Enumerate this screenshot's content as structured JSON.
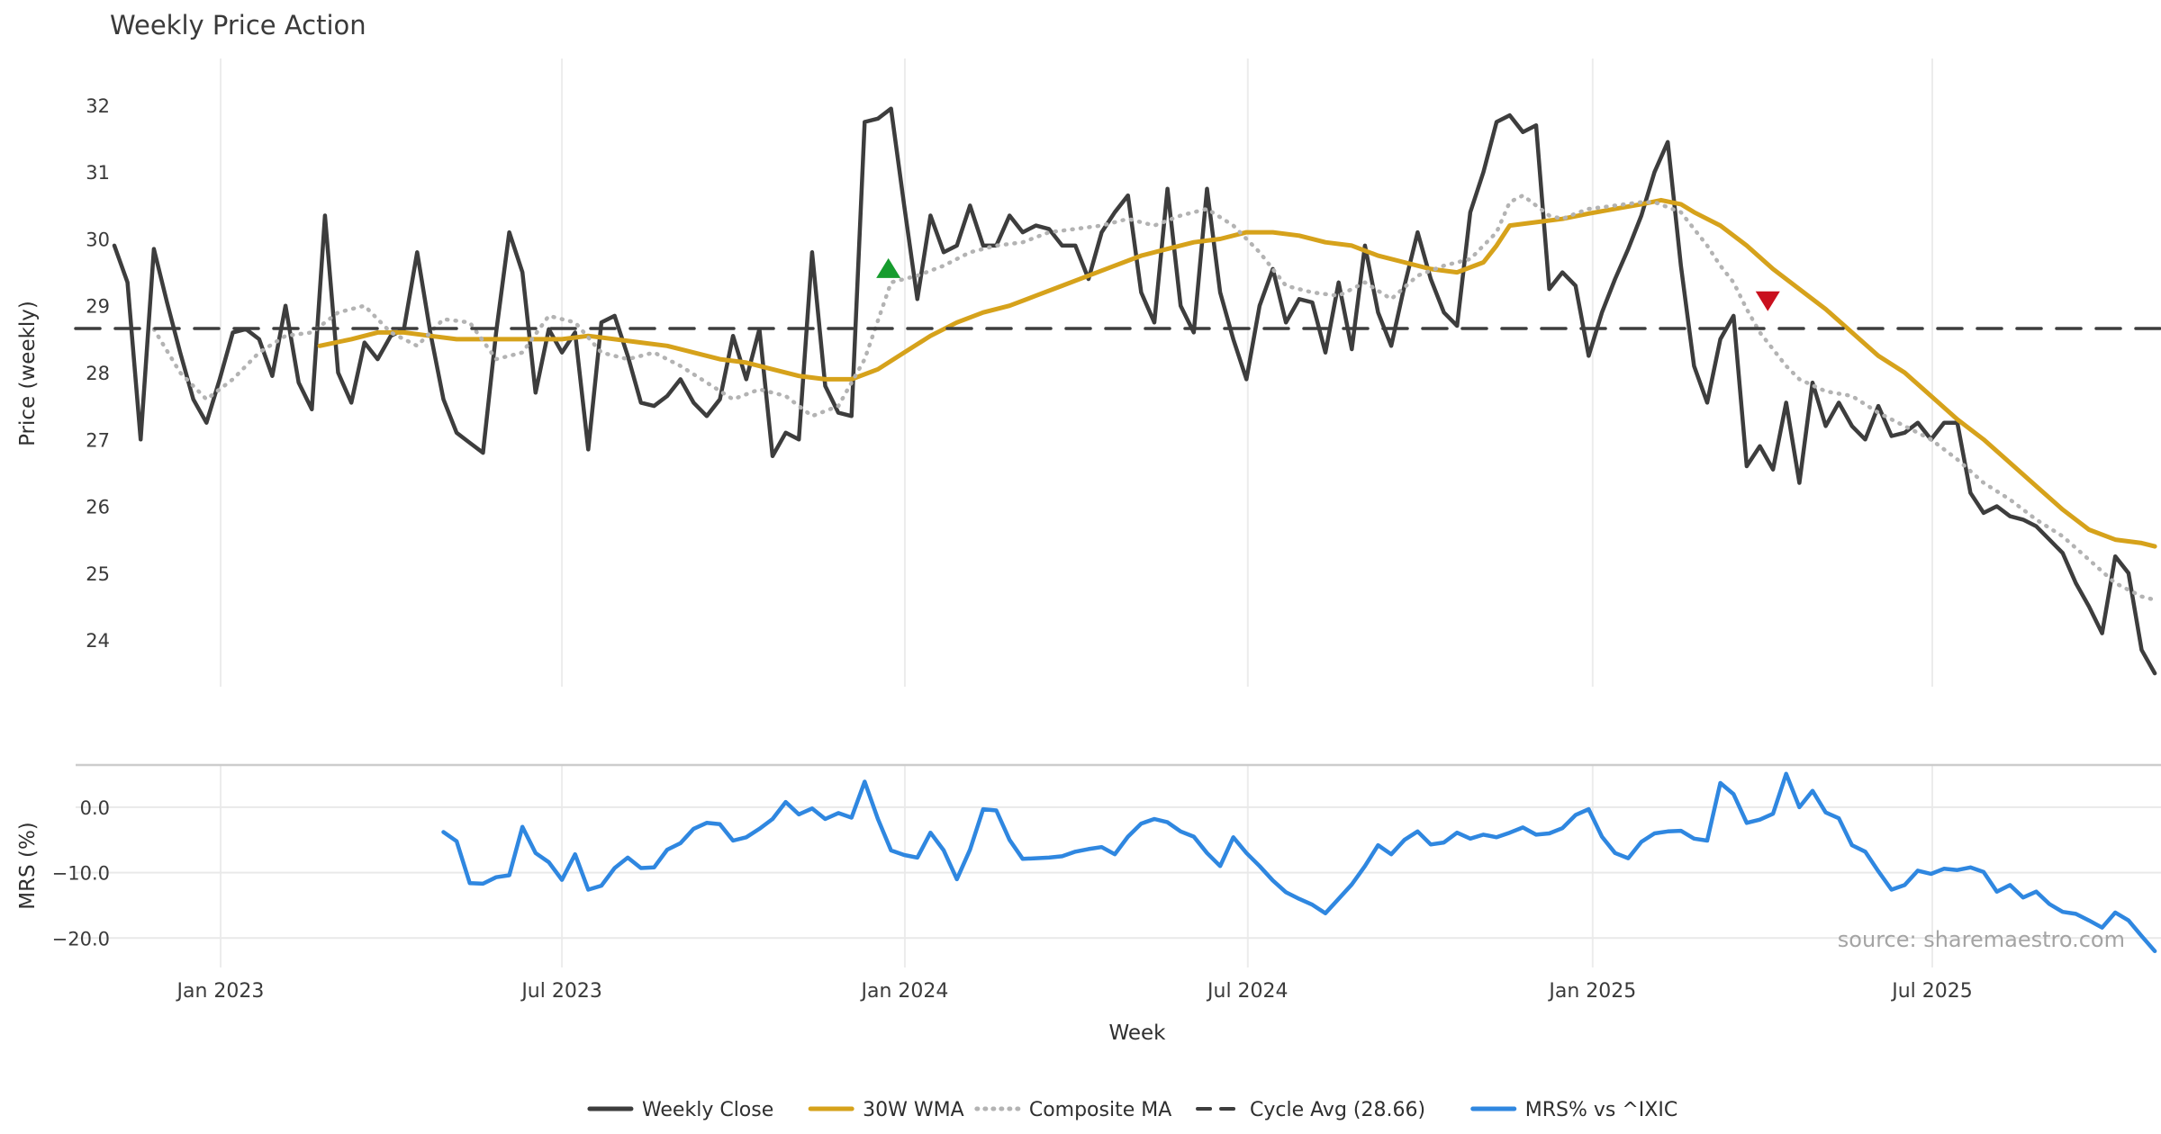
{
  "title": "Weekly Price Action",
  "watermark": "source: sharemaestro.com",
  "chart_data": {
    "type": "line",
    "title": "Weekly Price Action",
    "x_axis": {
      "label": "Week",
      "xlim_weeks": [
        -2.94,
        155.6
      ],
      "ticks": [
        {
          "week": 8.07,
          "label": "Jan 2023"
        },
        {
          "week": 34.0,
          "label": "Jul 2023"
        },
        {
          "week": 60.05,
          "label": "Jan 2024"
        },
        {
          "week": 86.1,
          "label": "Jul 2024"
        },
        {
          "week": 112.3,
          "label": "Jan 2025"
        },
        {
          "week": 138.1,
          "label": "Jul 2025"
        }
      ]
    },
    "panels": [
      {
        "id": "price",
        "ylabel": "Price (weekly)",
        "ylim": [
          23.3,
          32.7
        ],
        "yticks": [
          {
            "v": 24,
            "label": "24"
          },
          {
            "v": 25,
            "label": "25"
          },
          {
            "v": 26,
            "label": "26"
          },
          {
            "v": 27,
            "label": "27"
          },
          {
            "v": 28,
            "label": "28"
          },
          {
            "v": 29,
            "label": "29"
          },
          {
            "v": 30,
            "label": "30"
          },
          {
            "v": 31,
            "label": "31"
          },
          {
            "v": 32,
            "label": "32"
          }
        ],
        "grid": "vertical"
      },
      {
        "id": "mrs",
        "ylabel": "MRS (%)",
        "ylim": [
          -24.5,
          6.45
        ],
        "yticks": [
          {
            "v": 0,
            "label": "0.0"
          },
          {
            "v": -10,
            "label": "−10.0"
          },
          {
            "v": -20,
            "label": "−20.0"
          }
        ],
        "grid": "vertical+horizontal",
        "top_spine": true
      }
    ],
    "series": [
      {
        "name": "Weekly Close",
        "panel": "price",
        "color": "#3d3d3d",
        "style": "solid",
        "width": 4.5,
        "start_week": 0,
        "step": 1,
        "values": [
          29.9,
          29.35,
          27.0,
          29.85,
          29.05,
          28.3,
          27.6,
          27.25,
          27.9,
          28.6,
          28.65,
          28.5,
          27.95,
          29.0,
          27.85,
          27.45,
          30.35,
          28.0,
          27.55,
          28.45,
          28.2,
          28.55,
          28.65,
          29.8,
          28.6,
          27.6,
          27.1,
          26.95,
          26.8,
          28.6,
          30.1,
          29.5,
          27.7,
          28.65,
          28.3,
          28.6,
          26.85,
          28.75,
          28.85,
          28.25,
          27.55,
          27.5,
          27.65,
          27.9,
          27.55,
          27.35,
          27.6,
          28.55,
          27.9,
          28.65,
          26.75,
          27.1,
          27.0,
          29.8,
          27.8,
          27.4,
          27.35,
          31.75,
          31.8,
          31.95,
          30.5,
          29.1,
          30.35,
          29.8,
          29.9,
          30.5,
          29.9,
          29.9,
          30.35,
          30.1,
          30.2,
          30.15,
          29.9,
          29.9,
          29.4,
          30.1,
          30.4,
          30.65,
          29.2,
          28.75,
          30.75,
          29.0,
          28.6,
          30.75,
          29.2,
          28.5,
          27.9,
          29.0,
          29.55,
          28.75,
          29.1,
          29.05,
          28.3,
          29.35,
          28.35,
          29.9,
          28.9,
          28.4,
          29.3,
          30.1,
          29.4,
          28.9,
          28.7,
          30.4,
          31.0,
          31.75,
          31.85,
          31.6,
          31.7,
          29.25,
          29.5,
          29.3,
          28.25,
          28.9,
          29.4,
          29.85,
          30.35,
          31.0,
          31.45,
          29.6,
          28.1,
          27.55,
          28.5,
          28.85,
          26.6,
          26.9,
          26.55,
          27.55,
          26.35,
          27.85,
          27.2,
          27.55,
          27.2,
          27.0,
          27.5,
          27.05,
          27.1,
          27.25,
          27.0,
          27.25,
          27.25,
          26.2,
          25.9,
          26.0,
          25.85,
          25.8,
          25.7,
          25.5,
          25.3,
          24.85,
          24.5,
          24.1,
          25.25,
          25.0,
          23.85,
          23.5
        ]
      },
      {
        "name": "30W WMA",
        "panel": "price",
        "color": "#d6a21b",
        "style": "solid",
        "width": 5,
        "points": [
          [
            15.6,
            28.4
          ],
          [
            18,
            28.5
          ],
          [
            20,
            28.6
          ],
          [
            22,
            28.6
          ],
          [
            24,
            28.55
          ],
          [
            26,
            28.5
          ],
          [
            28,
            28.5
          ],
          [
            30,
            28.5
          ],
          [
            32,
            28.5
          ],
          [
            34,
            28.5
          ],
          [
            36,
            28.55
          ],
          [
            38,
            28.5
          ],
          [
            40,
            28.45
          ],
          [
            42,
            28.4
          ],
          [
            44,
            28.3
          ],
          [
            46,
            28.2
          ],
          [
            48,
            28.15
          ],
          [
            50,
            28.05
          ],
          [
            52,
            27.95
          ],
          [
            54,
            27.9
          ],
          [
            56,
            27.9
          ],
          [
            58,
            28.05
          ],
          [
            60,
            28.3
          ],
          [
            62,
            28.55
          ],
          [
            64,
            28.75
          ],
          [
            66,
            28.9
          ],
          [
            68,
            29.0
          ],
          [
            70,
            29.15
          ],
          [
            72,
            29.3
          ],
          [
            74,
            29.45
          ],
          [
            76,
            29.6
          ],
          [
            78,
            29.75
          ],
          [
            80,
            29.85
          ],
          [
            82,
            29.95
          ],
          [
            84,
            30.0
          ],
          [
            86,
            30.1
          ],
          [
            88,
            30.1
          ],
          [
            90,
            30.05
          ],
          [
            92,
            29.95
          ],
          [
            94,
            29.9
          ],
          [
            96,
            29.75
          ],
          [
            98,
            29.65
          ],
          [
            100,
            29.55
          ],
          [
            102,
            29.5
          ],
          [
            104,
            29.65
          ],
          [
            105,
            29.9
          ],
          [
            106,
            30.2
          ],
          [
            108,
            30.25
          ],
          [
            110,
            30.3
          ],
          [
            112,
            30.38
          ],
          [
            114,
            30.45
          ],
          [
            116,
            30.52
          ],
          [
            117.5,
            30.58
          ],
          [
            119,
            30.52
          ],
          [
            120,
            30.4
          ],
          [
            122,
            30.2
          ],
          [
            124,
            29.9
          ],
          [
            126,
            29.55
          ],
          [
            128,
            29.25
          ],
          [
            130,
            28.95
          ],
          [
            132,
            28.6
          ],
          [
            134,
            28.25
          ],
          [
            136,
            28.0
          ],
          [
            138,
            27.65
          ],
          [
            140,
            27.3
          ],
          [
            142,
            27.0
          ],
          [
            144,
            26.65
          ],
          [
            146,
            26.3
          ],
          [
            148,
            25.95
          ],
          [
            150,
            25.65
          ],
          [
            152,
            25.5
          ],
          [
            154,
            25.45
          ],
          [
            155,
            25.4
          ]
        ]
      },
      {
        "name": "Composite MA",
        "panel": "price",
        "color": "#b3b3b3",
        "style": "dotted",
        "width": 4.5,
        "points": [
          [
            3,
            28.65
          ],
          [
            5,
            28.0
          ],
          [
            7,
            27.6
          ],
          [
            9,
            27.9
          ],
          [
            11,
            28.3
          ],
          [
            13,
            28.55
          ],
          [
            15,
            28.6
          ],
          [
            17,
            28.9
          ],
          [
            19,
            29.0
          ],
          [
            21,
            28.6
          ],
          [
            23,
            28.4
          ],
          [
            25,
            28.8
          ],
          [
            27,
            28.75
          ],
          [
            29,
            28.2
          ],
          [
            31,
            28.3
          ],
          [
            33,
            28.85
          ],
          [
            35,
            28.75
          ],
          [
            37,
            28.3
          ],
          [
            39,
            28.2
          ],
          [
            41,
            28.3
          ],
          [
            43,
            28.1
          ],
          [
            45,
            27.85
          ],
          [
            47,
            27.6
          ],
          [
            49,
            27.75
          ],
          [
            51,
            27.65
          ],
          [
            53,
            27.35
          ],
          [
            55,
            27.5
          ],
          [
            57,
            28.2
          ],
          [
            59,
            29.35
          ],
          [
            61,
            29.45
          ],
          [
            63,
            29.6
          ],
          [
            65,
            29.8
          ],
          [
            67,
            29.9
          ],
          [
            69,
            29.95
          ],
          [
            71,
            30.1
          ],
          [
            73,
            30.15
          ],
          [
            75,
            30.2
          ],
          [
            77,
            30.3
          ],
          [
            79,
            30.2
          ],
          [
            81,
            30.35
          ],
          [
            83,
            30.45
          ],
          [
            85,
            30.2
          ],
          [
            87,
            29.8
          ],
          [
            89,
            29.3
          ],
          [
            91,
            29.2
          ],
          [
            93,
            29.15
          ],
          [
            95,
            29.35
          ],
          [
            97,
            29.1
          ],
          [
            99,
            29.45
          ],
          [
            101,
            29.6
          ],
          [
            103,
            29.7
          ],
          [
            105,
            30.1
          ],
          [
            106,
            30.55
          ],
          [
            107,
            30.65
          ],
          [
            108,
            30.5
          ],
          [
            109,
            30.35
          ],
          [
            110,
            30.3
          ],
          [
            111,
            30.38
          ],
          [
            112,
            30.45
          ],
          [
            114,
            30.5
          ],
          [
            116,
            30.55
          ],
          [
            117,
            30.55
          ],
          [
            119,
            30.4
          ],
          [
            121,
            29.9
          ],
          [
            122,
            29.6
          ],
          [
            123,
            29.35
          ],
          [
            124,
            28.95
          ],
          [
            125,
            28.6
          ],
          [
            126,
            28.35
          ],
          [
            127,
            28.1
          ],
          [
            128,
            27.9
          ],
          [
            130,
            27.72
          ],
          [
            132,
            27.65
          ],
          [
            134,
            27.4
          ],
          [
            136,
            27.2
          ],
          [
            138,
            27.0
          ],
          [
            140,
            26.7
          ],
          [
            142,
            26.35
          ],
          [
            144,
            26.1
          ],
          [
            146,
            25.8
          ],
          [
            148,
            25.55
          ],
          [
            150,
            25.2
          ],
          [
            152,
            24.85
          ],
          [
            154,
            24.65
          ],
          [
            155,
            24.6
          ]
        ]
      },
      {
        "name": "Cycle Avg (28.66)",
        "panel": "price",
        "color": "#3d3d3d",
        "style": "dashed",
        "width": 3.5,
        "h_value": 28.66
      },
      {
        "name": "MRS% vs ^IXIC",
        "panel": "mrs",
        "color": "#2f87e0",
        "style": "solid",
        "width": 4.5,
        "start_week": 25,
        "step": 1,
        "values": [
          -3.8,
          -5.2,
          -11.6,
          -11.7,
          -10.7,
          -10.4,
          -3.0,
          -7.0,
          -8.4,
          -11.1,
          -7.2,
          -12.6,
          -12.0,
          -9.3,
          -7.7,
          -9.3,
          -9.2,
          -6.5,
          -5.5,
          -3.3,
          -2.4,
          -2.6,
          -5.1,
          -4.6,
          -3.3,
          -1.8,
          0.8,
          -1.1,
          -0.2,
          -1.8,
          -0.9,
          -1.6,
          3.9,
          -1.8,
          -6.6,
          -7.3,
          -7.7,
          -3.9,
          -6.6,
          -11.0,
          -6.5,
          -0.3,
          -0.5,
          -5.0,
          -7.9,
          -7.8,
          -7.7,
          -7.5,
          -6.8,
          -6.4,
          -6.1,
          -7.2,
          -4.5,
          -2.5,
          -1.8,
          -2.3,
          -3.7,
          -4.5,
          -7.0,
          -9.0,
          -4.6,
          -7.0,
          -9.0,
          -11.2,
          -13.0,
          -14.0,
          -14.9,
          -16.2,
          -14.0,
          -11.8,
          -9.0,
          -5.8,
          -7.2,
          -5.0,
          -3.7,
          -5.7,
          -5.4,
          -3.9,
          -4.8,
          -4.2,
          -4.6,
          -3.9,
          -3.1,
          -4.2,
          -4.0,
          -3.2,
          -1.2,
          -0.3,
          -4.5,
          -7.0,
          -7.8,
          -5.3,
          -4.0,
          -3.7,
          -3.6,
          -4.8,
          -5.1,
          3.7,
          2.0,
          -2.4,
          -1.9,
          -1.0,
          5.1,
          0.0,
          2.5,
          -0.8,
          -1.7,
          -5.8,
          -6.8,
          -9.8,
          -12.6,
          -11.9,
          -9.7,
          -10.2,
          -9.4,
          -9.6,
          -9.2,
          -9.9,
          -12.9,
          -11.9,
          -13.8,
          -12.9,
          -14.8,
          -16.0,
          -16.3,
          -17.3,
          -18.4,
          -16.1,
          -17.3,
          -19.7,
          -22.0
        ]
      }
    ],
    "signals": [
      {
        "type": "buy",
        "marker": "triangle-up",
        "week": 58.8,
        "price": 29.55,
        "color": "#169c2e"
      },
      {
        "type": "sell",
        "marker": "triangle-down",
        "week": 125.6,
        "price": 29.08,
        "color": "#c9101e"
      }
    ],
    "legend": {
      "position": "bottom-center",
      "items": [
        {
          "label": "Weekly Close",
          "color": "#3d3d3d",
          "style": "solid"
        },
        {
          "label": "30W WMA",
          "color": "#d6a21b",
          "style": "solid"
        },
        {
          "label": "Composite MA",
          "color": "#b3b3b3",
          "style": "dotted"
        },
        {
          "label": "Cycle Avg (28.66)",
          "color": "#3d3d3d",
          "style": "dashed"
        },
        {
          "label": "MRS% vs ^IXIC",
          "color": "#2f87e0",
          "style": "solid"
        }
      ]
    },
    "grid_color": "#ececec",
    "spine_color": "#cccccc",
    "background": "#ffffff"
  }
}
